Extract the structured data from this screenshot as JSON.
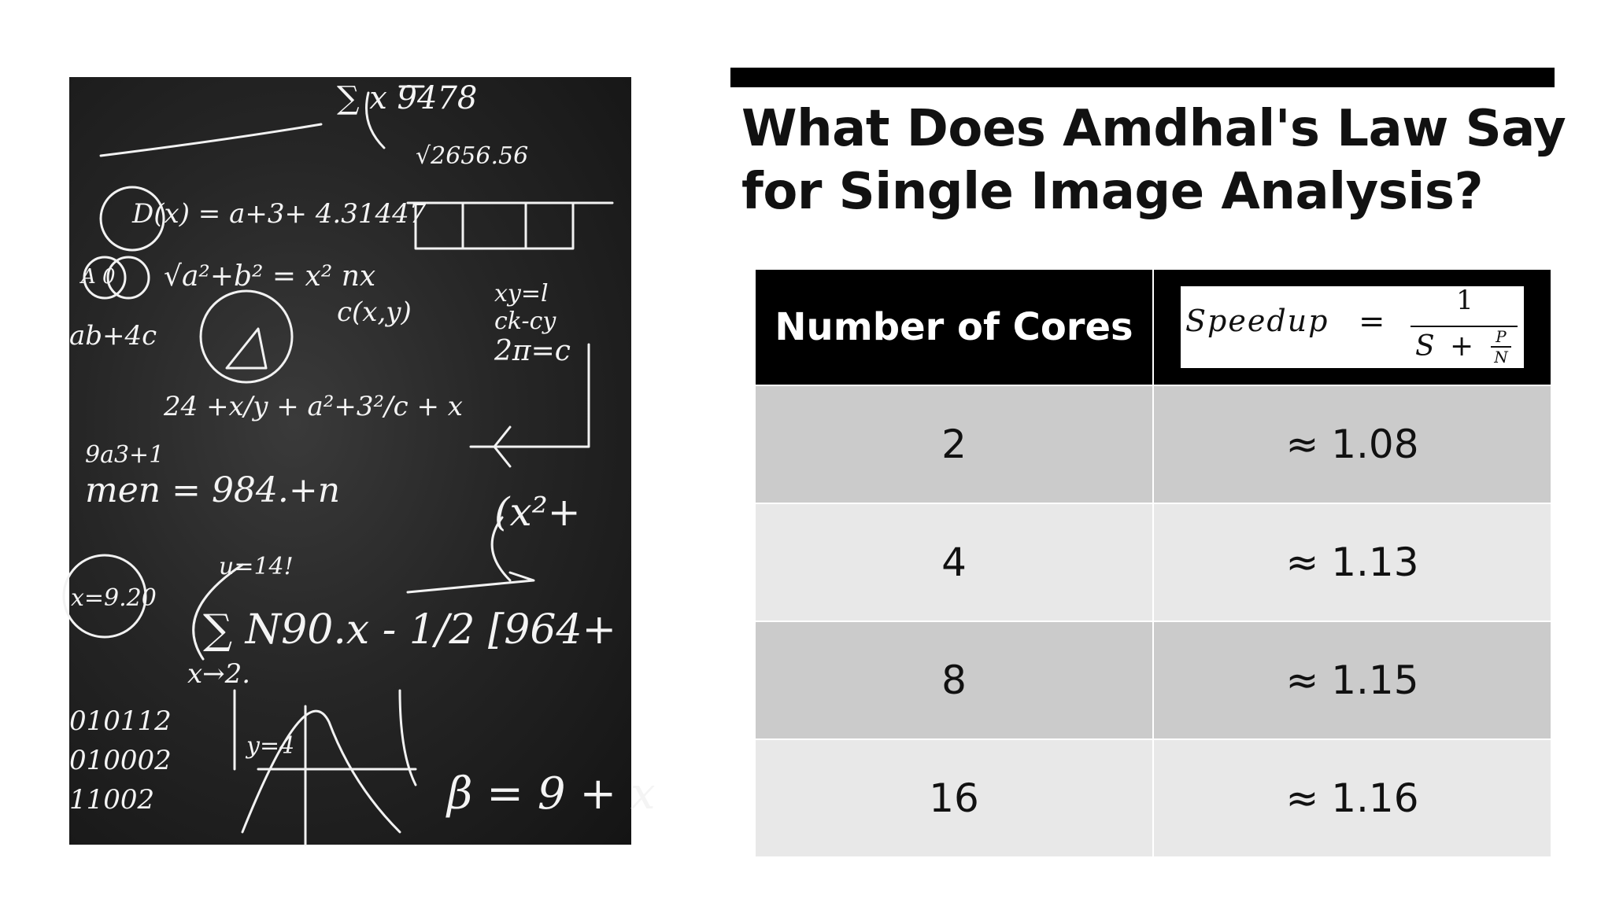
{
  "slide": {
    "title_line1": "What Does Amdhal's Law Say",
    "title_line2": "for Single Image Analysis?"
  },
  "photo": {
    "chalk_marks": [
      "D(x) = a+3+ 4.31447",
      "ab+4c",
      "men = 984.+n",
      "x=9.20",
      "u=14!",
      "x→2.",
      "β = 9 + x",
      "010112",
      "010002",
      "11002",
      "y=4",
      "9a3+1",
      "xy=l",
      "ck-cy",
      "2π=c",
      "c(x,y)",
      "24 +x/y + a²+3²/c + x",
      "√a²+b² = x² nx",
      "∑ N90.x - 1/2 [964+",
      "√2656.56",
      "(x²+",
      "∑ x 9478",
      "A  0"
    ]
  },
  "table": {
    "header_cores": "Number of Cores",
    "formula": {
      "lhs": "Speedup",
      "eq": "=",
      "numerator": "1",
      "den_s": "S",
      "den_plus": "+",
      "den_p": "P",
      "den_n": "N"
    },
    "rows": [
      {
        "cores": "2",
        "speedup": "≈ 1.08"
      },
      {
        "cores": "4",
        "speedup": "≈ 1.13"
      },
      {
        "cores": "8",
        "speedup": "≈ 1.15"
      },
      {
        "cores": "16",
        "speedup": "≈ 1.16"
      }
    ]
  },
  "colors": {
    "header_bg": "#000000",
    "row_dark": "#cbcbcb",
    "row_light": "#e8e8e8",
    "chalkboard": "#262626"
  }
}
